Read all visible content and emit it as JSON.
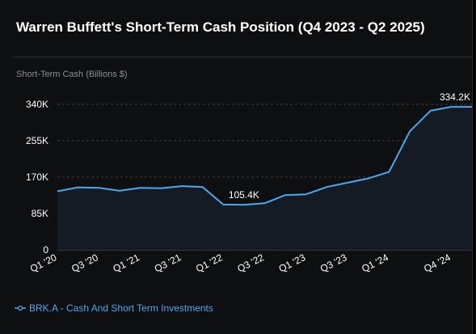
{
  "title": "Warren Buffett's Short-Term Cash Position (Q4 2023 - Q2 2025)",
  "ylabel": "Short-Term Cash (Billions $)",
  "legend_label": "BRK.A - Cash And Short Term Investments",
  "colors": {
    "line": "#4ea8f0",
    "area": "#141b24",
    "grid": "#3a3d42",
    "tick": "#ffffff",
    "background": "#0e0f11"
  },
  "chart_data": {
    "type": "area",
    "title": "Warren Buffett's Short-Term Cash Position (Q4 2023 - Q2 2025)",
    "ylabel": "Short-Term Cash (Billions $)",
    "xlabel": "",
    "ylim": [
      0,
      340000
    ],
    "y_ticks": [
      0,
      85000,
      170000,
      255000,
      340000
    ],
    "y_tick_labels": [
      "0",
      "85K",
      "170K",
      "255K",
      "340K"
    ],
    "grid": true,
    "legend_position": "bottom-left",
    "x_tick_labels": [
      {
        "label": "Q1 '20",
        "index": 0
      },
      {
        "label": "Q3 '20",
        "index": 2
      },
      {
        "label": "Q1 '21",
        "index": 4
      },
      {
        "label": "Q3 '21",
        "index": 6
      },
      {
        "label": "Q1 '22",
        "index": 8
      },
      {
        "label": "Q3 '22",
        "index": 10
      },
      {
        "label": "Q1 '23",
        "index": 12
      },
      {
        "label": "Q3 '23",
        "index": 14
      },
      {
        "label": "Q1 '24",
        "index": 16
      },
      {
        "label": "Q4 '24",
        "index": 19
      }
    ],
    "series": [
      {
        "name": "BRK.A - Cash And Short Term Investments",
        "x": [
          "Q1 '20",
          "Q2 '20",
          "Q3 '20",
          "Q4 '20",
          "Q1 '21",
          "Q2 '21",
          "Q3 '21",
          "Q4 '21",
          "Q1 '22",
          "Q2 '22",
          "Q3 '22",
          "Q4 '22",
          "Q1 '23",
          "Q2 '23",
          "Q3 '23",
          "Q4 '23",
          "Q1 '24",
          "Q2 '24",
          "Q3 '24",
          "Q4 '24",
          "Q1 '25"
        ],
        "values": [
          137000,
          146000,
          145000,
          138000,
          145000,
          144000,
          149000,
          147000,
          106000,
          105400,
          109000,
          128000,
          130000,
          147000,
          157000,
          167000,
          182000,
          277000,
          325000,
          334200,
          334200
        ]
      }
    ],
    "annotations": [
      {
        "label": "105.4K",
        "index": 9
      },
      {
        "label": "334.2K",
        "index": 20
      }
    ]
  }
}
